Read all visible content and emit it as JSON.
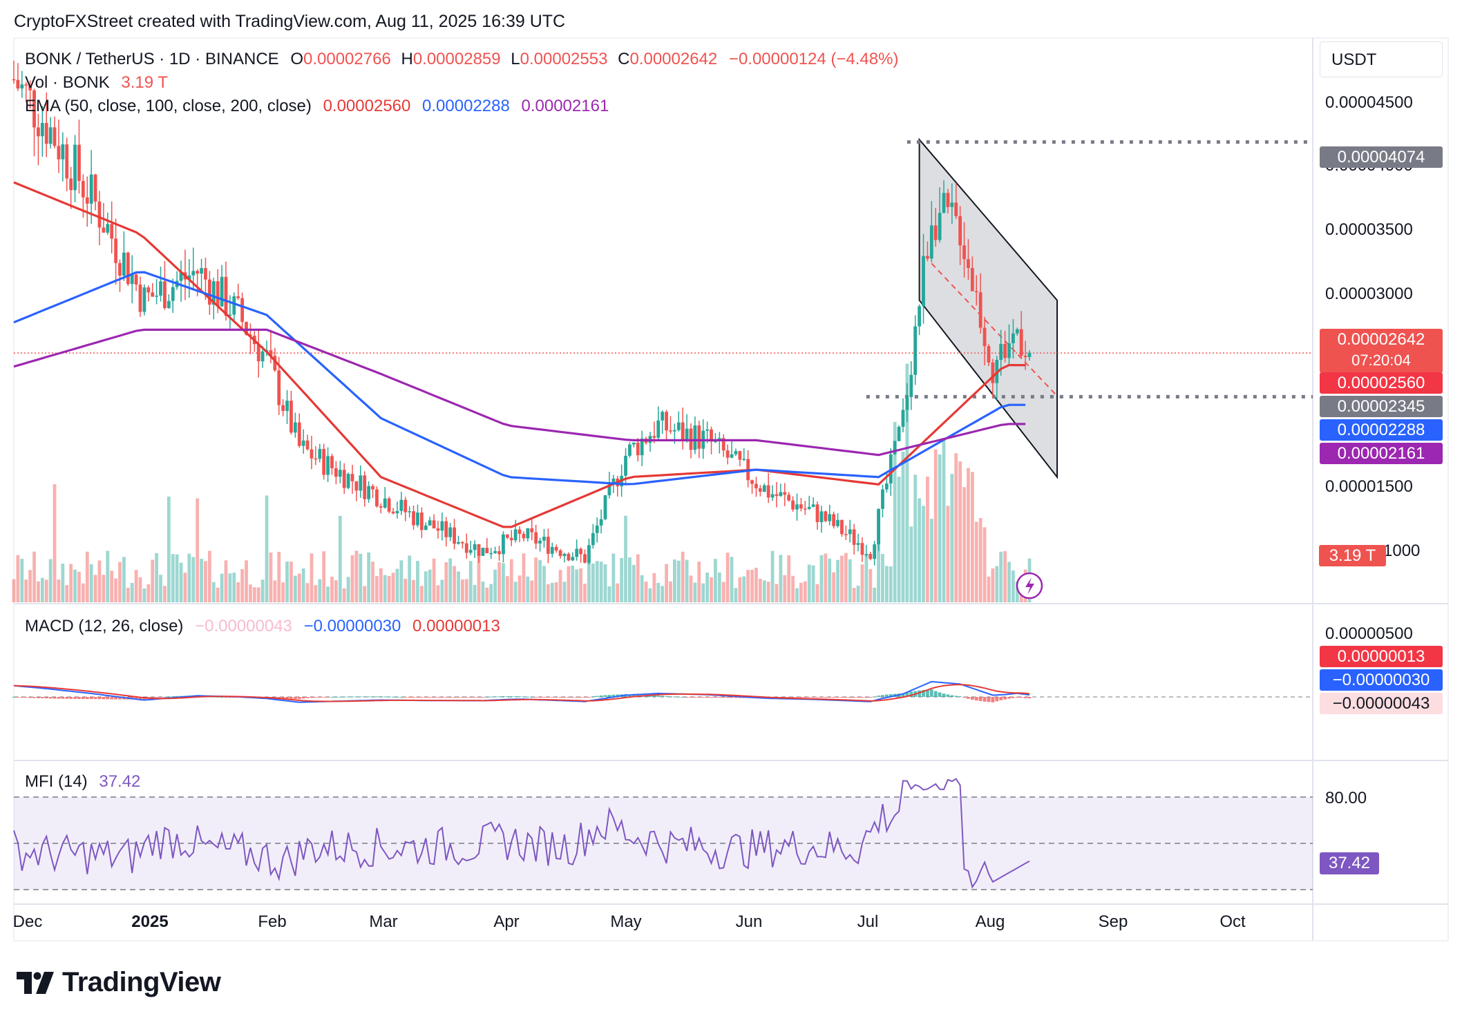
{
  "header": {
    "attribution": "CryptoFXStreet created with TradingView.com, Aug 11, 2025 16:39 UTC"
  },
  "price_pane": {
    "symbol_line": "BONK / TetherUS · 1D · BINANCE",
    "ohlc": {
      "o_label": "O",
      "o": "0.00002766",
      "h_label": "H",
      "h": "0.00002859",
      "l_label": "L",
      "l": "0.00002553",
      "c_label": "C",
      "c": "0.00002642",
      "change": "−0.00000124 (−4.48%)"
    },
    "volume_label": "Vol · BONK",
    "volume_value": "3.19 T",
    "ema_label": "EMA (50, close, 100, close, 200, close)",
    "ema_values": [
      "0.00002560",
      "0.00002288",
      "0.00002161"
    ],
    "currency_button": "USDT",
    "axis_ticks": [
      "0.00004500",
      "0.00004000",
      "0.00003500",
      "0.00003000",
      "0.00001500",
      "1000"
    ],
    "badges": {
      "resistance": "0.00004074",
      "last_price": "0.00002642",
      "countdown": "07:20:04",
      "ema50": "0.00002560",
      "support": "0.00002345",
      "ema100": "0.00002288",
      "ema200": "0.00002161",
      "volume": "3.19 T"
    }
  },
  "macd_pane": {
    "label": "MACD (12, 26, close)",
    "values": [
      "−0.00000043",
      "−0.00000030",
      "0.00000013"
    ],
    "axis_tick": "0.00000500",
    "badges": [
      "0.00000013",
      "−0.00000030",
      "−0.00000043"
    ]
  },
  "mfi_pane": {
    "label": "MFI (14)",
    "value": "37.42",
    "axis_tick": "80.00",
    "badge": "37.42"
  },
  "x_axis": {
    "months": [
      "Dec",
      "2025",
      "Feb",
      "Mar",
      "Apr",
      "May",
      "Jun",
      "Jul",
      "Aug",
      "Sep",
      "Oct"
    ]
  },
  "footer": {
    "logo_text": "TradingView"
  },
  "colors": {
    "up": "#26a69a",
    "down": "#ef5350",
    "ema50": "#e53935",
    "ema100": "#2962ff",
    "ema200": "#9c27b0",
    "support_badge": "#787b86",
    "mfi": "#7e57c2"
  },
  "chart_data": {
    "type": "candlestick",
    "title": "BONK / TetherUS · 1D · BINANCE",
    "x": [
      "Dec 2024",
      "Jan 2025",
      "Feb 2025",
      "Mar 2025",
      "Apr 2025",
      "May 2025",
      "Jun 2025",
      "Jul 2025",
      "Aug 2025"
    ],
    "series": [
      {
        "name": "Close (approx.)",
        "values": [
          4.4e-05,
          3.15e-05,
          2.15e-05,
          1.5e-05,
          1.2e-05,
          2.05e-05,
          1.6e-05,
          3.5e-05,
          2.64e-05
        ]
      },
      {
        "name": "EMA 50",
        "values": [
          3.8e-05,
          3.45e-05,
          2.65e-05,
          1.8e-05,
          1.45e-05,
          1.8e-05,
          1.85e-05,
          1.75e-05,
          2.56e-05
        ]
      },
      {
        "name": "EMA 100",
        "values": [
          2.85e-05,
          3.2e-05,
          2.9e-05,
          2.2e-05,
          1.8e-05,
          1.75e-05,
          1.85e-05,
          1.8e-05,
          2.29e-05
        ]
      },
      {
        "name": "EMA 200",
        "values": [
          2.55e-05,
          2.8e-05,
          2.8e-05,
          2.5e-05,
          2.15e-05,
          2.05e-05,
          2.05e-05,
          1.95e-05,
          2.16e-05
        ]
      }
    ],
    "levels": {
      "resistance": 4.074e-05,
      "support": 2.345e-05,
      "last": 2.642e-05
    },
    "ylim": [
      9.5e-06,
      4.78e-05
    ]
  }
}
